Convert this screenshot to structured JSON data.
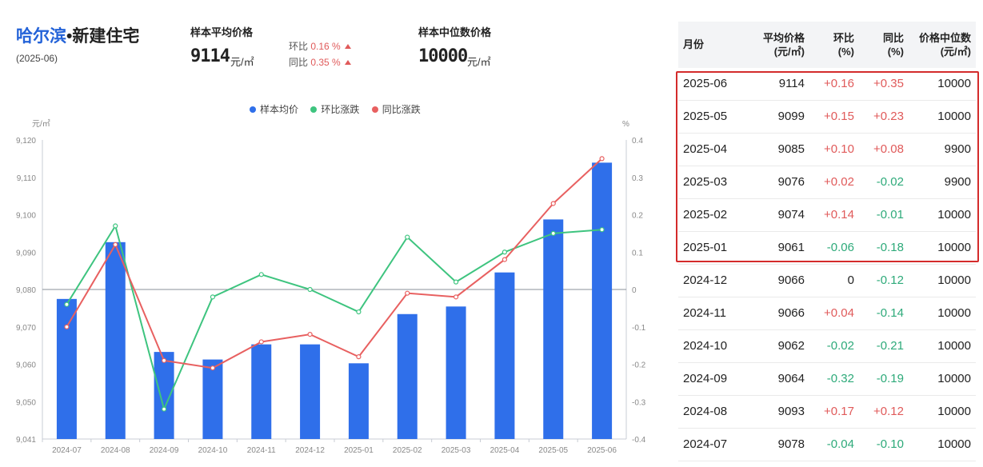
{
  "header": {
    "city": "哈尔滨",
    "separator": "•",
    "kind": "新建住宅",
    "date": "(2025-06)"
  },
  "kpis": {
    "avg": {
      "label": "样本平均价格",
      "value": "9114",
      "unit": "元/㎡",
      "mom_label": "环比",
      "mom_value": "0.16 %",
      "yoy_label": "同比",
      "yoy_value": "0.35 %"
    },
    "median": {
      "label": "样本中位数价格",
      "value": "10000",
      "unit": "元/㎡"
    }
  },
  "colors": {
    "bar": "#2f6fea",
    "mom": "#3ec47f",
    "yoy": "#e86060",
    "accent": "#2463d8",
    "highlight": "#d42b2b"
  },
  "chart_data": {
    "type": "bar",
    "categories": [
      "2024-07",
      "2024-08",
      "2024-09",
      "2024-10",
      "2024-11",
      "2024-12",
      "2025-01",
      "2025-02",
      "2025-03",
      "2025-04",
      "2025-05",
      "2025-06"
    ],
    "series": [
      {
        "name": "样本均价",
        "type": "bar",
        "axis": "left",
        "values": [
          9078,
          9093,
          9064,
          9062,
          9066,
          9066,
          9061,
          9074,
          9076,
          9085,
          9099,
          9114
        ]
      },
      {
        "name": "环比涨跌",
        "type": "line",
        "axis": "right",
        "values": [
          -0.04,
          0.17,
          -0.32,
          -0.02,
          0.04,
          0,
          -0.06,
          0.14,
          0.02,
          0.1,
          0.15,
          0.16
        ]
      },
      {
        "name": "同比涨跌",
        "type": "line",
        "axis": "right",
        "values": [
          -0.1,
          0.12,
          -0.19,
          -0.21,
          -0.14,
          -0.12,
          -0.18,
          -0.01,
          -0.02,
          0.08,
          0.23,
          0.35
        ]
      }
    ],
    "ylabel_left": "元/㎡",
    "ylabel_right": "%",
    "ylim_left": [
      9041,
      9120
    ],
    "ylim_right": [
      -0.4,
      0.4
    ],
    "yticks_left": [
      "9,120",
      "9,110",
      "9,100",
      "9,090",
      "9,080",
      "9,070",
      "9,060",
      "9,050",
      "9,041"
    ],
    "yticks_right": [
      "0.4",
      "0.3",
      "0.2",
      "0.1",
      "0",
      "-0.1",
      "-0.2",
      "-0.3",
      "-0.4"
    ],
    "legend_position": "top-center",
    "grid": false
  },
  "table": {
    "headers": {
      "month": "月份",
      "avg_1": "平均价格",
      "avg_2": "(元/㎡)",
      "mom_1": "环比",
      "mom_2": "(%)",
      "yoy_1": "同比",
      "yoy_2": "(%)",
      "median_1": "价格中位数",
      "median_2": "(元/㎡)"
    },
    "rows": [
      {
        "month": "2025-06",
        "avg": "9114",
        "mom": "+0.16",
        "yoy": "+0.35",
        "median": "10000"
      },
      {
        "month": "2025-05",
        "avg": "9099",
        "mom": "+0.15",
        "yoy": "+0.23",
        "median": "10000"
      },
      {
        "month": "2025-04",
        "avg": "9085",
        "mom": "+0.10",
        "yoy": "+0.08",
        "median": "9900"
      },
      {
        "month": "2025-03",
        "avg": "9076",
        "mom": "+0.02",
        "yoy": "-0.02",
        "median": "9900"
      },
      {
        "month": "2025-02",
        "avg": "9074",
        "mom": "+0.14",
        "yoy": "-0.01",
        "median": "10000"
      },
      {
        "month": "2025-01",
        "avg": "9061",
        "mom": "-0.06",
        "yoy": "-0.18",
        "median": "10000"
      },
      {
        "month": "2024-12",
        "avg": "9066",
        "mom": "0",
        "yoy": "-0.12",
        "median": "10000"
      },
      {
        "month": "2024-11",
        "avg": "9066",
        "mom": "+0.04",
        "yoy": "-0.14",
        "median": "10000"
      },
      {
        "month": "2024-10",
        "avg": "9062",
        "mom": "-0.02",
        "yoy": "-0.21",
        "median": "10000"
      },
      {
        "month": "2024-09",
        "avg": "9064",
        "mom": "-0.32",
        "yoy": "-0.19",
        "median": "10000"
      },
      {
        "month": "2024-08",
        "avg": "9093",
        "mom": "+0.17",
        "yoy": "+0.12",
        "median": "10000"
      },
      {
        "month": "2024-07",
        "avg": "9078",
        "mom": "-0.04",
        "yoy": "-0.10",
        "median": "10000"
      }
    ]
  }
}
